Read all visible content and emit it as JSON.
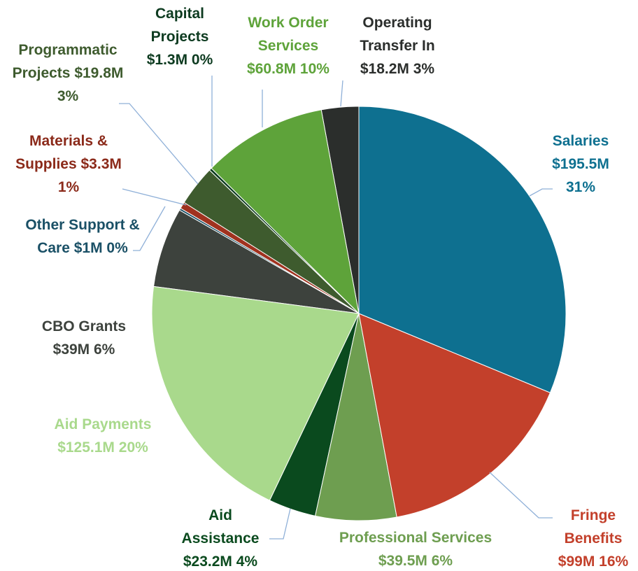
{
  "chart_data": {
    "type": "pie",
    "categories": [
      "Salaries",
      "Fringe Benefits",
      "Professional Services",
      "Aid Assistance",
      "Aid Payments",
      "CBO Grants",
      "Other Support & Care",
      "Materials & Supplies",
      "Programmatic Projects",
      "Capital Projects",
      "Work Order Services",
      "Operating Transfer In"
    ],
    "values": [
      195.5,
      99,
      39.5,
      23.2,
      125.1,
      39,
      1,
      3.3,
      19.8,
      1.3,
      60.8,
      18.2
    ],
    "value_labels": [
      "$195.5M 31%",
      "$99M 16%",
      "$39.5M 6%",
      "$23.2M 4%",
      "$125.1M 20%",
      "$39M 6%",
      "$1M 0%",
      "$3.3M 1%",
      "$19.8M 3%",
      "$1.3M 0%",
      "$60.8M 10%",
      "$18.2M 3%"
    ],
    "colors": [
      "#0e7090",
      "#c3402b",
      "#6e9e50",
      "#0a4a1e",
      "#a9d98c",
      "#3d423d",
      "#1a5066",
      "#a0321f",
      "#3e5b2e",
      "#0d3b20",
      "#5ea33a",
      "#2b2e2c"
    ]
  }
}
